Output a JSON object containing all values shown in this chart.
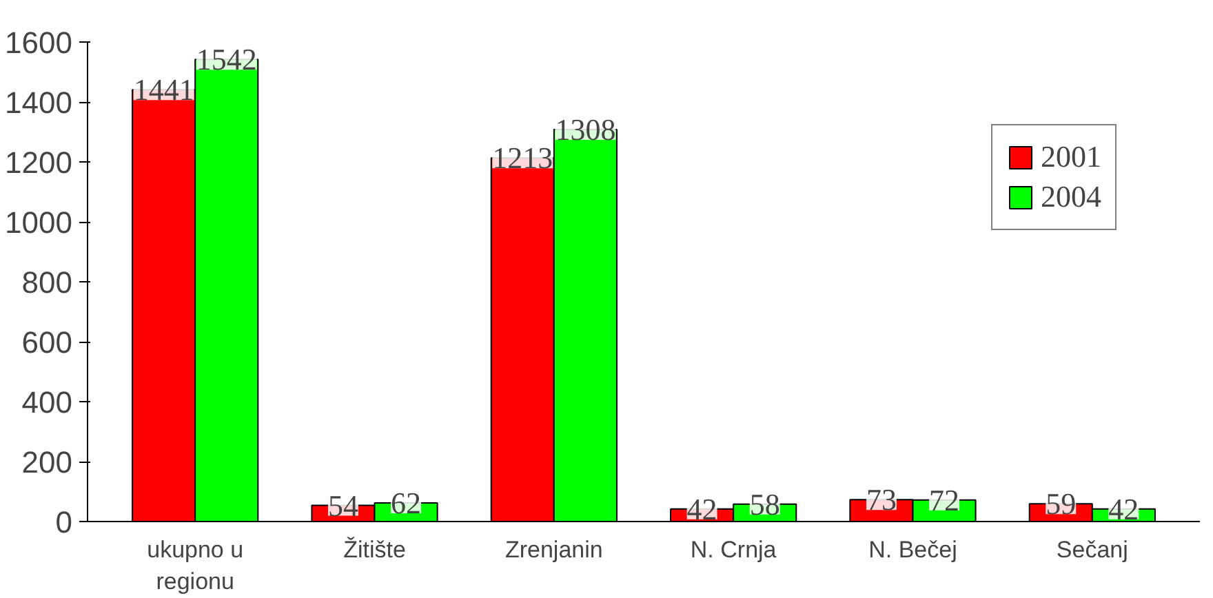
{
  "chart_data": {
    "type": "bar",
    "categories": [
      "ukupno u regionu",
      "Žitište",
      "Zrenjanin",
      "N. Crnja",
      "N. Bečej",
      "Sečanj"
    ],
    "series": [
      {
        "name": "2001",
        "color": "#ff0000",
        "values": [
          1441,
          54,
          1213,
          42,
          73,
          59
        ]
      },
      {
        "name": "2004",
        "color": "#00ff00",
        "values": [
          1542,
          62,
          1308,
          58,
          72,
          42
        ]
      }
    ],
    "ylim": [
      0,
      1600
    ],
    "yticks": [
      0,
      200,
      400,
      600,
      800,
      1000,
      1200,
      1400,
      1600
    ],
    "data_labels": true,
    "grid": false,
    "legend": "top right"
  }
}
